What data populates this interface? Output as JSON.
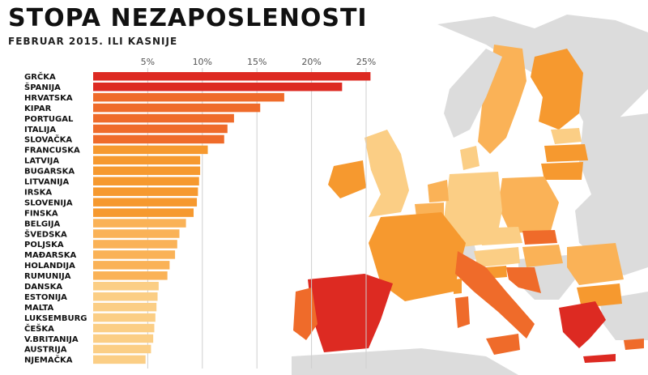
{
  "header": {
    "title": "STOPA NEZAPOSLENOSTI",
    "subtitle": "FEBRUAR 2015. ILI KASNIJE"
  },
  "colors": {
    "highest": "#dd2a22",
    "high": "#ef6b2a",
    "medium": "#f6992f",
    "low": "#fab257",
    "lowest": "#fbce85",
    "non_eu": "#dcdcdc",
    "sea": "#ffffff"
  },
  "chart_data": {
    "type": "bar",
    "orientation": "horizontal",
    "title": "STOPA NEZAPOSLENOSTI",
    "subtitle": "FEBRUAR 2015. ILI KASNIJE",
    "xlim": [
      0,
      25.5
    ],
    "ticks": [
      5,
      10,
      15,
      20,
      25
    ],
    "tick_labels": [
      "5%",
      "10%",
      "15%",
      "20%",
      "25%"
    ],
    "grid": true,
    "categories": [
      "GRČKA",
      "ŠPANIJA",
      "HRVATSKA",
      "KIPAR",
      "PORTUGAL",
      "ITALIJA",
      "SLOVAČKA",
      "FRANCUSKA",
      "LATVIJA",
      "BUGARSKA",
      "LITVANIJA",
      "IRSKA",
      "SLOVENIJA",
      "FINSKA",
      "BELGIJA",
      "ŠVEDSKA",
      "POLJSKA",
      "MAĐARSKA",
      "HOLANDIJA",
      "RUMUNIJA",
      "DANSKA",
      "ESTONIJA",
      "MALTA",
      "LUKSEMBURG",
      "ČEŠKA",
      "V.BRITANIJA",
      "AUSTRIJA",
      "NJEMAČKA"
    ],
    "values": [
      25.4,
      22.8,
      17.5,
      15.3,
      12.9,
      12.3,
      12.0,
      10.5,
      9.8,
      9.8,
      9.7,
      9.6,
      9.5,
      9.2,
      8.5,
      7.9,
      7.7,
      7.5,
      7.0,
      6.8,
      6.0,
      5.9,
      5.8,
      5.7,
      5.6,
      5.5,
      5.3,
      4.8
    ],
    "bar_color_classes": [
      "highest",
      "highest",
      "high",
      "high",
      "high",
      "high",
      "high",
      "medium",
      "medium",
      "medium",
      "medium",
      "medium",
      "medium",
      "medium",
      "low",
      "low",
      "low",
      "low",
      "low",
      "low",
      "lowest",
      "lowest",
      "lowest",
      "lowest",
      "lowest",
      "lowest",
      "lowest",
      "lowest"
    ]
  }
}
